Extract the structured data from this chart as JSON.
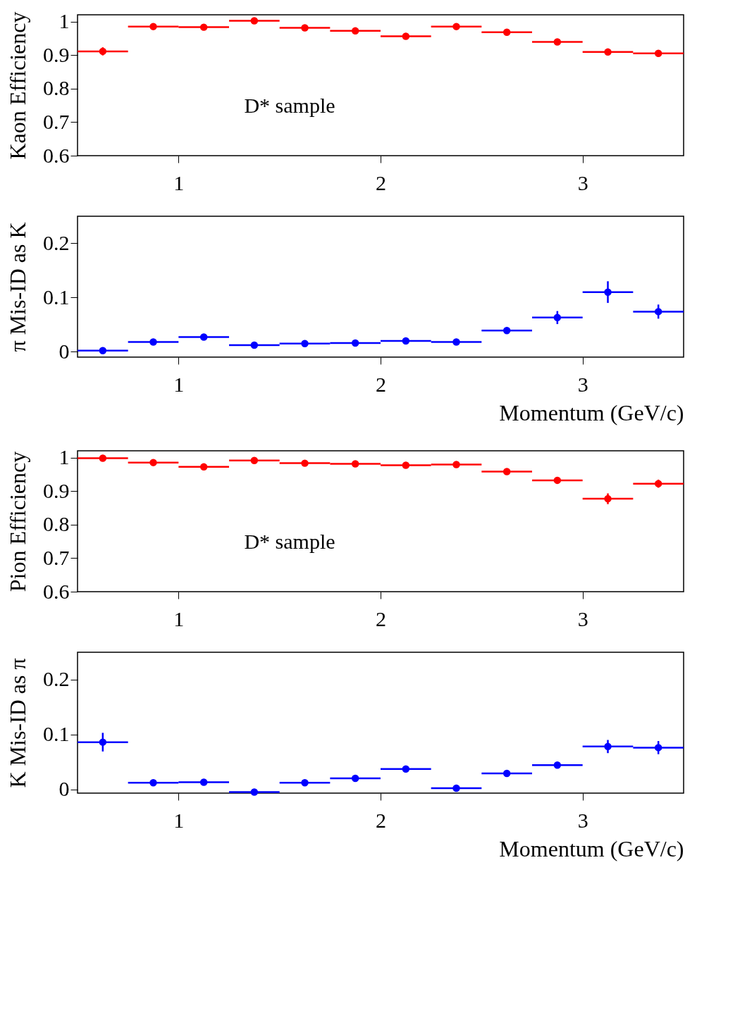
{
  "chart_data": [
    {
      "type": "scatter",
      "ylabel": "Kaon Efficiency",
      "x": [
        0.625,
        0.875,
        1.125,
        1.375,
        1.625,
        1.875,
        2.125,
        2.375,
        2.625,
        2.875,
        3.125,
        3.375
      ],
      "series": [
        {
          "color": "#ff0000",
          "values": [
            0.911,
            0.985,
            0.983,
            1.002,
            0.981,
            0.972,
            0.956,
            0.985,
            0.968,
            0.939,
            0.909,
            0.905
          ],
          "errors": [
            0.012,
            0.004,
            0.004,
            0.004,
            0.004,
            0.004,
            0.004,
            0.004,
            0.005,
            0.005,
            0.008,
            0.01
          ],
          "xerrors": [
            0.125,
            0.125,
            0.125,
            0.125,
            0.125,
            0.125,
            0.125,
            0.125,
            0.125,
            0.125,
            0.125,
            0.125
          ]
        }
      ],
      "xlim": [
        0.5,
        3.5
      ],
      "xticks": [
        1,
        2,
        3
      ],
      "ylim": [
        0.6,
        1.02
      ],
      "yticks": [
        0.6,
        0.7,
        0.8,
        0.9,
        {
          "value": 1,
          "label": "1"
        }
      ],
      "annotations": [
        "D* sample"
      ],
      "marker": "circle",
      "grid": false
    },
    {
      "type": "scatter",
      "ylabel": "π Mis-ID as K",
      "xlabel": "Momentum    (GeV/c)",
      "x": [
        0.625,
        0.875,
        1.125,
        1.375,
        1.625,
        1.875,
        2.125,
        2.375,
        2.625,
        2.875,
        3.125,
        3.375
      ],
      "series": [
        {
          "color": "#0000ff",
          "values": [
            0.002,
            0.018,
            0.027,
            0.012,
            0.015,
            0.016,
            0.02,
            0.018,
            0.039,
            0.063,
            0.11,
            0.074
          ],
          "errors": [
            0.002,
            0.003,
            0.003,
            0.003,
            0.003,
            0.003,
            0.003,
            0.003,
            0.005,
            0.012,
            0.02,
            0.013
          ],
          "xerrors": [
            0.125,
            0.125,
            0.125,
            0.125,
            0.125,
            0.125,
            0.125,
            0.125,
            0.125,
            0.125,
            0.125,
            0.125
          ]
        }
      ],
      "xlim": [
        0.5,
        3.5
      ],
      "xticks": [
        1,
        2,
        3
      ],
      "ylim": [
        -0.01,
        0.25
      ],
      "yticks": [
        0,
        0.1,
        0.2
      ],
      "marker": "circle",
      "grid": false
    },
    {
      "type": "scatter",
      "ylabel": "Pion Efficiency",
      "x": [
        0.625,
        0.875,
        1.125,
        1.375,
        1.625,
        1.875,
        2.125,
        2.375,
        2.625,
        2.875,
        3.125,
        3.375
      ],
      "series": [
        {
          "color": "#ff0000",
          "values": [
            0.998,
            0.985,
            0.972,
            0.991,
            0.983,
            0.981,
            0.977,
            0.979,
            0.958,
            0.932,
            0.877,
            0.922
          ],
          "errors": [
            0.003,
            0.003,
            0.003,
            0.003,
            0.003,
            0.003,
            0.003,
            0.003,
            0.004,
            0.008,
            0.016,
            0.012
          ],
          "xerrors": [
            0.125,
            0.125,
            0.125,
            0.125,
            0.125,
            0.125,
            0.125,
            0.125,
            0.125,
            0.125,
            0.125,
            0.125
          ]
        }
      ],
      "xlim": [
        0.5,
        3.5
      ],
      "xticks": [
        1,
        2,
        3
      ],
      "ylim": [
        0.6,
        1.02
      ],
      "yticks": [
        0.6,
        0.7,
        0.8,
        0.9,
        {
          "value": 1,
          "label": "1"
        }
      ],
      "annotations": [
        "D* sample"
      ],
      "marker": "circle",
      "grid": false
    },
    {
      "type": "scatter",
      "ylabel": "K Mis-ID as π",
      "xlabel": "Momentum    (GeV/c)",
      "x": [
        0.625,
        0.875,
        1.125,
        1.375,
        1.625,
        1.875,
        2.125,
        2.375,
        2.625,
        2.875,
        3.125,
        3.375
      ],
      "series": [
        {
          "color": "#0000ff",
          "values": [
            0.086,
            0.012,
            0.013,
            -0.005,
            0.012,
            0.02,
            0.037,
            0.002,
            0.029,
            0.044,
            0.078,
            0.076
          ],
          "errors": [
            0.017,
            0.003,
            0.003,
            0.003,
            0.003,
            0.003,
            0.003,
            0.003,
            0.003,
            0.006,
            0.012,
            0.012
          ],
          "xerrors": [
            0.125,
            0.125,
            0.125,
            0.125,
            0.125,
            0.125,
            0.125,
            0.125,
            0.125,
            0.125,
            0.125,
            0.125
          ]
        }
      ],
      "xlim": [
        0.5,
        3.5
      ],
      "xticks": [
        1,
        2,
        3
      ],
      "ylim": [
        -0.007,
        0.25
      ],
      "yticks": [
        0,
        0.1,
        0.2
      ],
      "marker": "circle",
      "grid": false
    }
  ]
}
